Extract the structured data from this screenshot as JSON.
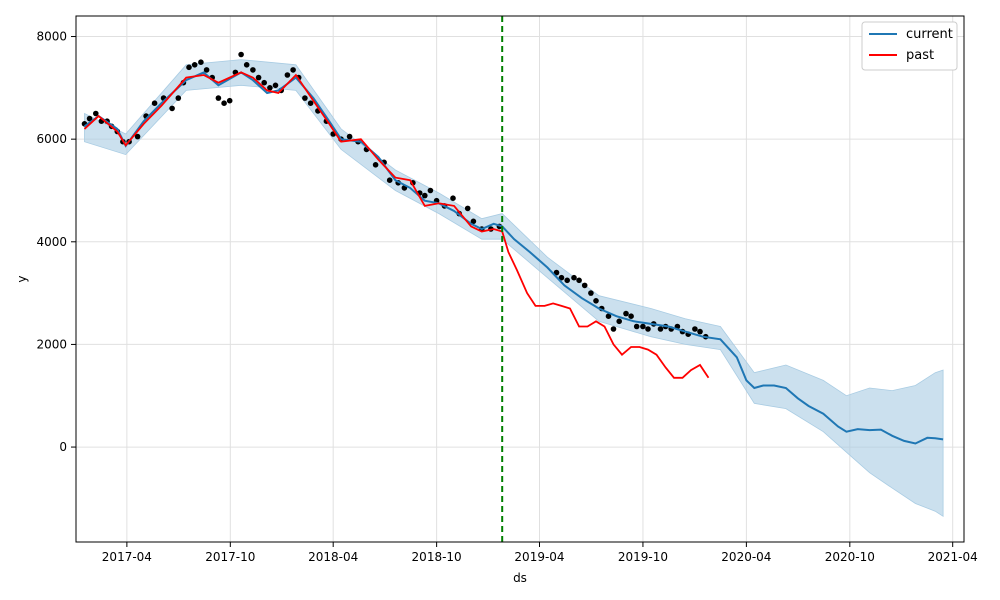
{
  "chart_data": {
    "type": "line",
    "title": "",
    "xlabel": "ds",
    "ylabel": "y",
    "xlim": [
      "2017-01-01",
      "2021-04-21"
    ],
    "ylim": [
      -1850,
      8400
    ],
    "x_ticks": [
      "2017-04",
      "2017-10",
      "2018-04",
      "2018-10",
      "2019-04",
      "2019-10",
      "2020-04",
      "2020-10",
      "2021-04"
    ],
    "y_ticks": [
      0,
      2000,
      4000,
      6000,
      8000
    ],
    "grid": true,
    "legend_position": "top-right",
    "cutoff_date": "2019-01-25",
    "colors": {
      "current": "#1f77b4",
      "past": "#ff0000",
      "band": "#a9cce3",
      "observed": "#000000",
      "cutoff": "#008000",
      "grid": "#e0e0e0"
    },
    "series": [
      {
        "name": "current",
        "x": [
          "2017-01-16",
          "2017-02-10",
          "2017-03-15",
          "2017-03-30",
          "2017-05-01",
          "2017-06-01",
          "2017-07-15",
          "2017-08-15",
          "2017-09-10",
          "2017-10-20",
          "2017-11-10",
          "2017-12-05",
          "2017-12-25",
          "2018-01-25",
          "2018-02-25",
          "2018-03-25",
          "2018-04-15",
          "2018-05-20",
          "2018-06-20",
          "2018-07-20",
          "2018-08-15",
          "2018-09-10",
          "2018-10-05",
          "2018-11-01",
          "2018-12-01",
          "2018-12-20",
          "2019-01-10",
          "2019-01-25",
          "2019-02-15",
          "2019-03-15",
          "2019-04-15",
          "2019-05-15",
          "2019-06-15",
          "2019-07-15",
          "2019-08-15",
          "2019-09-15",
          "2019-10-15",
          "2019-11-15",
          "2019-12-15",
          "2020-01-15",
          "2020-02-15",
          "2020-03-15",
          "2020-04-01",
          "2020-04-15",
          "2020-05-01",
          "2020-05-20",
          "2020-06-10",
          "2020-07-01",
          "2020-07-20",
          "2020-08-15",
          "2020-09-10",
          "2020-09-25",
          "2020-10-15",
          "2020-11-05",
          "2020-11-25",
          "2020-12-15",
          "2021-01-05",
          "2021-01-25",
          "2021-02-15",
          "2021-03-01",
          "2021-03-15"
        ],
        "values": [
          6250,
          6450,
          6200,
          5870,
          6350,
          6700,
          7150,
          7300,
          7050,
          7300,
          7150,
          6900,
          6950,
          7200,
          6800,
          6350,
          6000,
          5950,
          5650,
          5200,
          5050,
          4800,
          4750,
          4600,
          4350,
          4250,
          4350,
          4300,
          4050,
          3800,
          3500,
          3150,
          2900,
          2700,
          2550,
          2450,
          2400,
          2350,
          2250,
          2150,
          2100,
          1750,
          1300,
          1150,
          1200,
          1200,
          1150,
          950,
          800,
          650,
          400,
          300,
          350,
          330,
          340,
          220,
          120,
          70,
          180,
          170,
          150
        ]
      },
      {
        "name": "past",
        "x": [
          "2017-01-16",
          "2017-02-10",
          "2017-03-15",
          "2017-03-30",
          "2017-05-01",
          "2017-06-01",
          "2017-07-15",
          "2017-08-15",
          "2017-09-10",
          "2017-10-20",
          "2017-11-10",
          "2017-12-05",
          "2017-12-25",
          "2018-01-25",
          "2018-02-25",
          "2018-03-25",
          "2018-04-15",
          "2018-05-20",
          "2018-06-20",
          "2018-07-20",
          "2018-08-15",
          "2018-09-10",
          "2018-10-05",
          "2018-11-01",
          "2018-12-01",
          "2018-12-20",
          "2019-01-10",
          "2019-01-25",
          "2019-02-05",
          "2019-02-20",
          "2019-03-10",
          "2019-03-25",
          "2019-04-10",
          "2019-04-25",
          "2019-05-10",
          "2019-05-25",
          "2019-06-10",
          "2019-06-25",
          "2019-07-10",
          "2019-07-25",
          "2019-08-10",
          "2019-08-25",
          "2019-09-10",
          "2019-09-25",
          "2019-10-10",
          "2019-10-25",
          "2019-11-10",
          "2019-11-25",
          "2019-12-10",
          "2019-12-25",
          "2020-01-10",
          "2020-01-25"
        ],
        "values": [
          6200,
          6450,
          6150,
          5880,
          6300,
          6650,
          7200,
          7250,
          7100,
          7300,
          7200,
          6950,
          6900,
          7250,
          6750,
          6300,
          5950,
          6000,
          5600,
          5250,
          5200,
          4700,
          4750,
          4700,
          4300,
          4200,
          4250,
          4200,
          3800,
          3450,
          3000,
          2750,
          2750,
          2800,
          2750,
          2700,
          2350,
          2350,
          2450,
          2350,
          2000,
          1800,
          1950,
          1950,
          1900,
          1800,
          1550,
          1350,
          1350,
          1500,
          1600,
          1350
        ]
      }
    ],
    "uncertainty_band": {
      "x": [
        "2017-01-16",
        "2017-03-30",
        "2017-07-15",
        "2017-10-20",
        "2018-01-25",
        "2018-04-15",
        "2018-07-20",
        "2018-10-05",
        "2018-12-20",
        "2019-01-25",
        "2019-04-15",
        "2019-07-15",
        "2019-10-15",
        "2019-12-15",
        "2020-02-15",
        "2020-04-15",
        "2020-06-10",
        "2020-08-15",
        "2020-09-25",
        "2020-11-05",
        "2020-12-15",
        "2021-01-25",
        "2021-03-01",
        "2021-03-15"
      ],
      "lower": [
        5950,
        5700,
        6950,
        7050,
        6950,
        5800,
        5000,
        4550,
        4050,
        4050,
        3300,
        2450,
        2150,
        2000,
        1900,
        850,
        750,
        300,
        -100,
        -500,
        -800,
        -1100,
        -1250,
        -1350
      ],
      "upper": [
        6500,
        6100,
        7450,
        7550,
        7450,
        6200,
        5400,
        4950,
        4450,
        4550,
        3700,
        2950,
        2700,
        2500,
        2350,
        1450,
        1600,
        1300,
        1000,
        1150,
        1100,
        1200,
        1450,
        1500
      ]
    },
    "observed": {
      "x": [
        "2017-01-16",
        "2017-01-25",
        "2017-02-05",
        "2017-02-15",
        "2017-02-25",
        "2017-03-05",
        "2017-03-15",
        "2017-03-25",
        "2017-04-05",
        "2017-04-20",
        "2017-05-05",
        "2017-05-20",
        "2017-06-05",
        "2017-06-20",
        "2017-07-01",
        "2017-07-10",
        "2017-07-20",
        "2017-07-30",
        "2017-08-10",
        "2017-08-20",
        "2017-08-30",
        "2017-09-10",
        "2017-09-20",
        "2017-09-30",
        "2017-10-10",
        "2017-10-20",
        "2017-10-30",
        "2017-11-10",
        "2017-11-20",
        "2017-11-30",
        "2017-12-10",
        "2017-12-20",
        "2017-12-30",
        "2018-01-10",
        "2018-01-20",
        "2018-01-30",
        "2018-02-10",
        "2018-02-20",
        "2018-03-05",
        "2018-03-20",
        "2018-04-01",
        "2018-04-15",
        "2018-04-30",
        "2018-05-15",
        "2018-05-30",
        "2018-06-15",
        "2018-06-30",
        "2018-07-10",
        "2018-07-25",
        "2018-08-05",
        "2018-08-20",
        "2018-09-01",
        "2018-09-10",
        "2018-09-20",
        "2018-10-01",
        "2018-10-15",
        "2018-10-30",
        "2018-11-10",
        "2018-11-25",
        "2018-12-05",
        "2018-12-20",
        "2019-01-05",
        "2019-01-20",
        "2019-05-01",
        "2019-05-10",
        "2019-05-20",
        "2019-06-01",
        "2019-06-10",
        "2019-06-20",
        "2019-07-01",
        "2019-07-10",
        "2019-07-20",
        "2019-08-01",
        "2019-08-10",
        "2019-08-20",
        "2019-09-01",
        "2019-09-10",
        "2019-09-20",
        "2019-10-01",
        "2019-10-10",
        "2019-10-20",
        "2019-11-01",
        "2019-11-10",
        "2019-11-20",
        "2019-12-01",
        "2019-12-10",
        "2019-12-20",
        "2020-01-01",
        "2020-01-10",
        "2020-01-20"
      ],
      "values": [
        6300,
        6400,
        6500,
        6350,
        6350,
        6250,
        6150,
        5950,
        5950,
        6050,
        6450,
        6700,
        6800,
        6600,
        6800,
        7100,
        7400,
        7450,
        7500,
        7350,
        7200,
        6800,
        6700,
        6750,
        7300,
        7650,
        7450,
        7350,
        7200,
        7100,
        7000,
        7050,
        6950,
        7250,
        7350,
        7200,
        6800,
        6700,
        6550,
        6350,
        6100,
        6000,
        6050,
        5950,
        5800,
        5500,
        5550,
        5200,
        5150,
        5050,
        5150,
        4950,
        4900,
        5000,
        4800,
        4700,
        4850,
        4550,
        4650,
        4400,
        4250,
        4250,
        4300,
        3400,
        3300,
        3250,
        3300,
        3250,
        3150,
        3000,
        2850,
        2700,
        2550,
        2300,
        2450,
        2600,
        2550,
        2350,
        2350,
        2300,
        2400,
        2300,
        2350,
        2300,
        2350,
        2250,
        2200,
        2300,
        2250,
        2150
      ]
    }
  }
}
